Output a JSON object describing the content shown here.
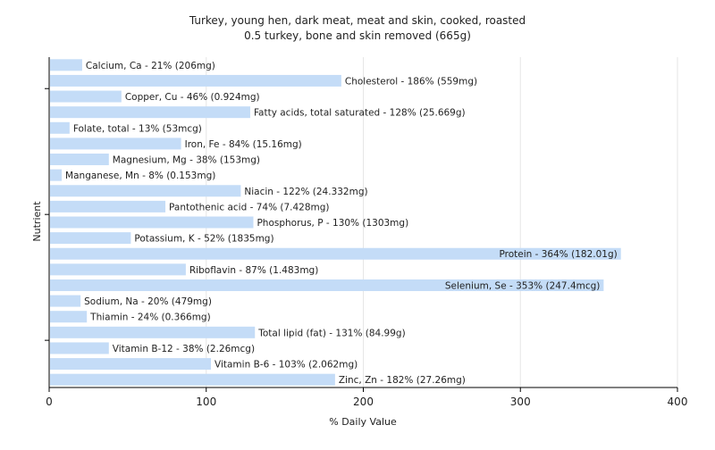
{
  "chart_data": {
    "type": "bar",
    "orientation": "horizontal",
    "title": "Turkey, young hen, dark meat, meat and skin, cooked, roasted",
    "subtitle": "0.5 turkey, bone and skin removed (665g)",
    "xlabel": "% Daily Value",
    "ylabel": "Nutrient",
    "xlim": [
      0,
      400
    ],
    "xticks": [
      "0",
      "100",
      "200",
      "300",
      "400"
    ],
    "grid": true,
    "bar_color": "#c4dcf7",
    "categories": [
      "Calcium, Ca - 21% (206mg)",
      "Cholesterol - 186% (559mg)",
      "Copper, Cu - 46% (0.924mg)",
      "Fatty acids, total saturated - 128% (25.669g)",
      "Folate, total - 13% (53mcg)",
      "Iron, Fe - 84% (15.16mg)",
      "Magnesium, Mg - 38% (153mg)",
      "Manganese, Mn - 8% (0.153mg)",
      "Niacin - 122% (24.332mg)",
      "Pantothenic acid - 74% (7.428mg)",
      "Phosphorus, P - 130% (1303mg)",
      "Potassium, K - 52% (1835mg)",
      "Protein - 364% (182.01g)",
      "Riboflavin - 87% (1.483mg)",
      "Selenium, Se - 353% (247.4mcg)",
      "Sodium, Na - 20% (479mg)",
      "Thiamin - 24% (0.366mg)",
      "Total lipid (fat) - 131% (84.99g)",
      "Vitamin B-12 - 38% (2.26mcg)",
      "Vitamin B-6 - 103% (2.062mg)",
      "Zinc, Zn - 182% (27.26mg)"
    ],
    "values": [
      21,
      186,
      46,
      128,
      13,
      84,
      38,
      8,
      122,
      74,
      130,
      52,
      364,
      87,
      353,
      20,
      24,
      131,
      38,
      103,
      182
    ]
  }
}
